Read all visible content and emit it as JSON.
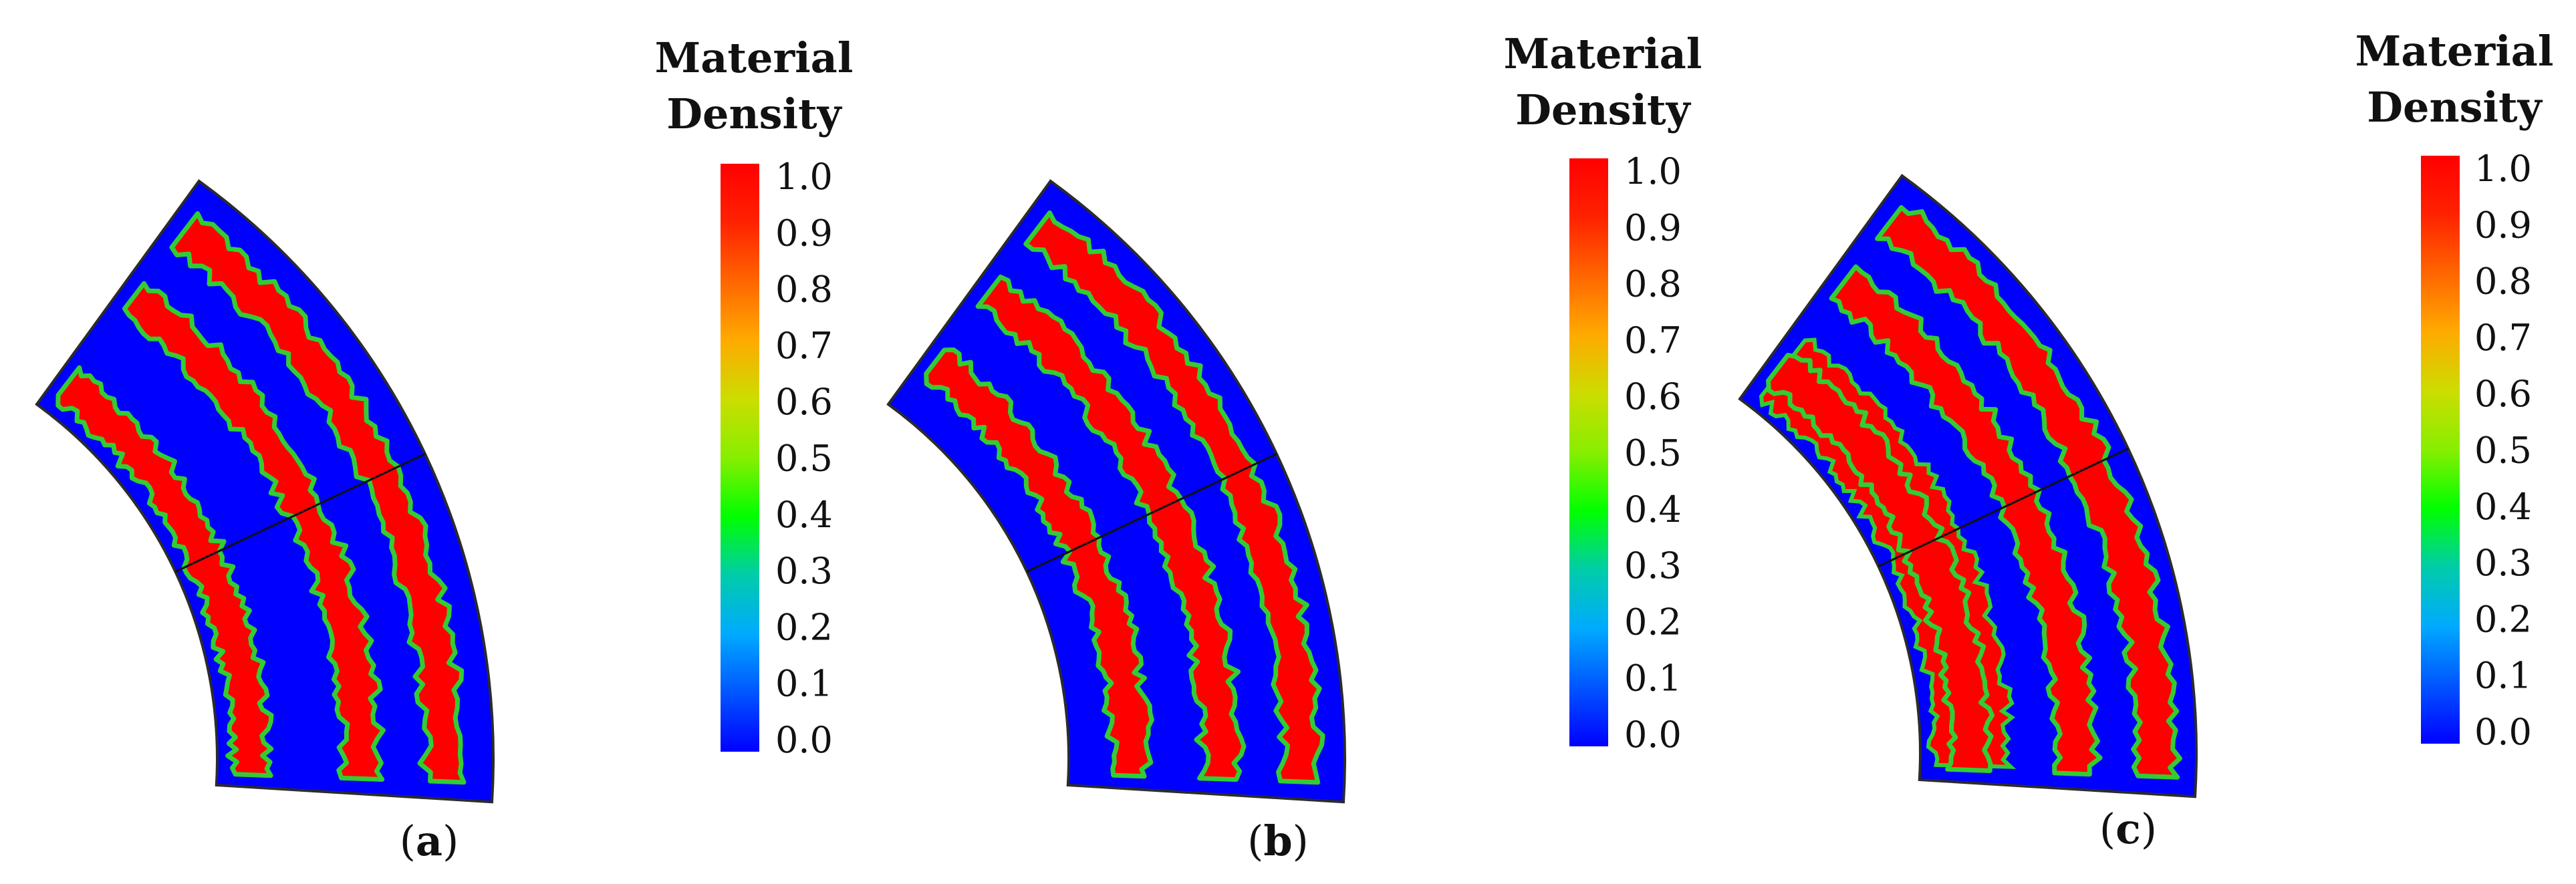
{
  "figure": {
    "legend_title_line1": "Material",
    "legend_title_line2": "Density",
    "colorbar_ticks": [
      "1.0",
      "0.9",
      "0.8",
      "0.7",
      "0.6",
      "0.5",
      "0.4",
      "0.3",
      "0.2",
      "0.1",
      "0.0"
    ],
    "colors": {
      "solid": "#ff0000",
      "void": "#0000ff",
      "boundary_green": "#33cc33",
      "outline": "#2b2b2b",
      "colormap": [
        "#0000ff",
        "#0055ff",
        "#00aaff",
        "#00ccaa",
        "#00ff00",
        "#88ee00",
        "#ccdd00",
        "#ffaa00",
        "#ff6600",
        "#ff2200",
        "#ff0000"
      ]
    },
    "panels": [
      {
        "id": "a",
        "caption_open": "(",
        "caption_label": "a",
        "caption_close": ")",
        "red_bands": [
          0.82,
          0.52,
          0.12
        ],
        "band_width": 0.13,
        "inner_fill": false
      },
      {
        "id": "b",
        "caption_open": "(",
        "caption_label": "b",
        "caption_close": ")",
        "red_bands": [
          0.84,
          0.55,
          0.22
        ],
        "band_width": 0.13,
        "inner_fill": false
      },
      {
        "id": "c",
        "caption_open": "(",
        "caption_label": "c",
        "caption_close": ")",
        "red_bands": [
          0.85,
          0.56,
          0.18
        ],
        "band_width": 0.14,
        "inner_fill": true
      }
    ]
  }
}
